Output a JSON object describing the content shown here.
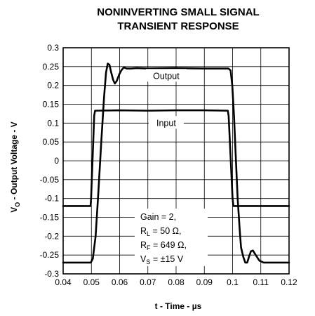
{
  "chart_data": {
    "type": "line",
    "title": [
      "NONINVERTING SMALL SIGNAL",
      "TRANSIENT RESPONSE"
    ],
    "xlabel": "t - Time - µs",
    "ylabel": {
      "main": "V",
      "sub": "O",
      "rest": " - Output Voltage - V"
    },
    "xlim": [
      0.04,
      0.12
    ],
    "ylim": [
      -0.3,
      0.3
    ],
    "xticks": [
      "0.04",
      "0.05",
      "0.06",
      "0.07",
      "0.08",
      "0.09",
      "0.1",
      "0.11",
      "0.12"
    ],
    "yticks": [
      "0.3",
      "0.25",
      "0.2",
      "0.15",
      "0.1",
      "0.05",
      "0",
      "-0.05",
      "-0.1",
      "-0.15",
      "-0.2",
      "-0.25",
      "-0.3"
    ],
    "grid": true,
    "series": [
      {
        "name": "Input",
        "x": [
          0.04,
          0.0497,
          0.0499,
          0.051,
          0.0513,
          0.06,
          0.07,
          0.08,
          0.09,
          0.0983,
          0.0986,
          0.1,
          0.1003,
          0.11,
          0.12
        ],
        "y": [
          -0.12,
          -0.12,
          -0.1,
          0.12,
          0.133,
          0.134,
          0.133,
          0.134,
          0.134,
          0.133,
          0.12,
          -0.1,
          -0.12,
          -0.12,
          -0.12
        ]
      },
      {
        "name": "Output",
        "x": [
          0.04,
          0.046,
          0.0498,
          0.0505,
          0.0515,
          0.0525,
          0.0535,
          0.0545,
          0.0552,
          0.0558,
          0.0564,
          0.057,
          0.0577,
          0.0583,
          0.059,
          0.0598,
          0.0606,
          0.0615,
          0.0625,
          0.064,
          0.066,
          0.07,
          0.08,
          0.09,
          0.0985,
          0.0993,
          0.0999,
          0.1005,
          0.1012,
          0.1018,
          0.1025,
          0.103,
          0.1038,
          0.1045,
          0.1052,
          0.1058,
          0.1065,
          0.1072,
          0.1082,
          0.1095,
          0.111,
          0.12
        ],
        "y": [
          -0.27,
          -0.27,
          -0.27,
          -0.26,
          -0.2,
          -0.08,
          0.05,
          0.17,
          0.235,
          0.258,
          0.255,
          0.235,
          0.215,
          0.205,
          0.212,
          0.228,
          0.24,
          0.248,
          0.245,
          0.245,
          0.246,
          0.245,
          0.246,
          0.245,
          0.245,
          0.24,
          0.2,
          0.12,
          0.0,
          -0.1,
          -0.18,
          -0.23,
          -0.255,
          -0.27,
          -0.27,
          -0.255,
          -0.24,
          -0.238,
          -0.25,
          -0.265,
          -0.27,
          -0.27
        ]
      }
    ],
    "annotations": [
      {
        "text": "Output",
        "x": 0.0765,
        "y": 0.225
      },
      {
        "text": "Input",
        "x": 0.0765,
        "y": 0.1
      }
    ],
    "note": {
      "line1": "Gain = 2,",
      "line2": {
        "main": "R",
        "sub": "L",
        "rest": " = 50 Ω,"
      },
      "line3": {
        "main": "R",
        "sub": "F",
        "rest": " = 649 Ω,"
      },
      "line4": {
        "main": "V",
        "sub": "S",
        "rest": " = ±15 V"
      }
    }
  }
}
